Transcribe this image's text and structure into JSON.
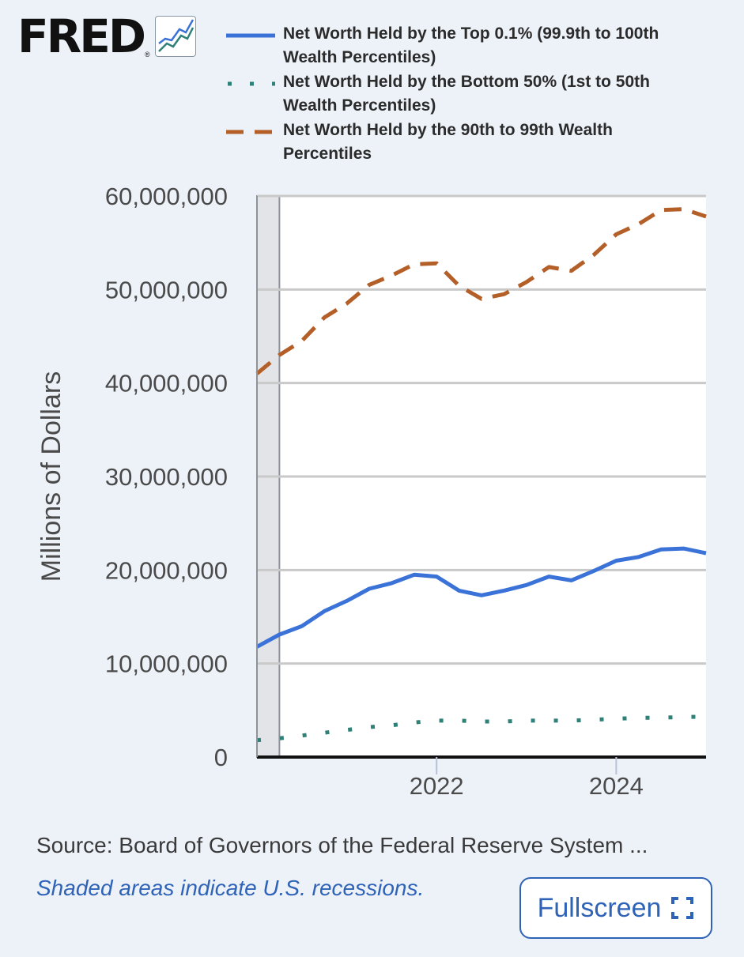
{
  "logo": {
    "text": "FRED",
    "reg": "®"
  },
  "legend": [
    {
      "label": "Net Worth Held by the Top 0.1% (99.9th to 100th Wealth Percentiles)",
      "color": "#3a72d8",
      "style": "solid"
    },
    {
      "label": "Net Worth Held by the Bottom 50% (1st to 50th Wealth Percentiles)",
      "color": "#2f8077",
      "style": "dotted"
    },
    {
      "label": "Net Worth Held by the 90th to 99th Wealth Percentiles",
      "color": "#b35f27",
      "style": "dashed"
    }
  ],
  "chart_data": {
    "type": "line",
    "title": "",
    "xlabel": "",
    "ylabel": "Millions of Dollars",
    "ylim": [
      0,
      60000000
    ],
    "yticks": [
      0,
      10000000,
      20000000,
      30000000,
      40000000,
      50000000,
      60000000
    ],
    "ytick_labels": [
      "0",
      "10,000,000",
      "20,000,000",
      "30,000,000",
      "40,000,000",
      "50,000,000",
      "60,000,000"
    ],
    "xlim": [
      2020.0,
      2025.0
    ],
    "xticks": [
      2022,
      2024
    ],
    "xtick_labels": [
      "2022",
      "2024"
    ],
    "recession": {
      "start": 2020.0,
      "end": 2020.25
    },
    "grid": true,
    "series": [
      {
        "name": "Net Worth Held by the Top 0.1% (99.9th to 100th Wealth Percentiles)",
        "color": "#3a72d8",
        "style": "solid",
        "x": [
          2020.0,
          2020.25,
          2020.5,
          2020.75,
          2021.0,
          2021.25,
          2021.5,
          2021.75,
          2022.0,
          2022.25,
          2022.5,
          2022.75,
          2023.0,
          2023.25,
          2023.5,
          2023.75,
          2024.0,
          2024.25,
          2024.5,
          2024.75,
          2025.0
        ],
        "values": [
          11800000,
          13100000,
          14000000,
          15600000,
          16700000,
          18000000,
          18600000,
          19500000,
          19300000,
          17800000,
          17300000,
          17800000,
          18400000,
          19300000,
          18900000,
          19900000,
          21000000,
          21400000,
          22200000,
          22300000,
          21800000
        ]
      },
      {
        "name": "Net Worth Held by the Bottom 50% (1st to 50th Wealth Percentiles)",
        "color": "#2f8077",
        "style": "dotted",
        "x": [
          2020.0,
          2020.25,
          2020.5,
          2020.75,
          2021.0,
          2021.25,
          2021.5,
          2021.75,
          2022.0,
          2022.25,
          2022.5,
          2022.75,
          2023.0,
          2023.25,
          2023.5,
          2023.75,
          2024.0,
          2024.25,
          2024.5,
          2024.75,
          2025.0
        ],
        "values": [
          1800000,
          2000000,
          2300000,
          2600000,
          2900000,
          3200000,
          3400000,
          3700000,
          3900000,
          3900000,
          3800000,
          3800000,
          3900000,
          3900000,
          3900000,
          4000000,
          4100000,
          4200000,
          4200000,
          4300000,
          4300000
        ]
      },
      {
        "name": "Net Worth Held by the 90th to 99th Wealth Percentiles",
        "color": "#b35f27",
        "style": "dashed",
        "x": [
          2020.0,
          2020.25,
          2020.5,
          2020.75,
          2021.0,
          2021.25,
          2021.5,
          2021.75,
          2022.0,
          2022.25,
          2022.5,
          2022.75,
          2023.0,
          2023.25,
          2023.5,
          2023.75,
          2024.0,
          2024.25,
          2024.5,
          2024.75,
          2025.0
        ],
        "values": [
          41000000,
          43000000,
          44500000,
          47000000,
          48500000,
          50500000,
          51500000,
          52700000,
          52800000,
          50400000,
          49000000,
          49500000,
          50800000,
          52400000,
          52000000,
          53700000,
          55900000,
          57000000,
          58500000,
          58600000,
          57800000
        ]
      }
    ]
  },
  "source_text": "Source: Board of Governors of the Federal Reserve System ...",
  "recession_note": "Shaded areas indicate U.S. recessions.",
  "fullscreen_label": "Fullscreen"
}
